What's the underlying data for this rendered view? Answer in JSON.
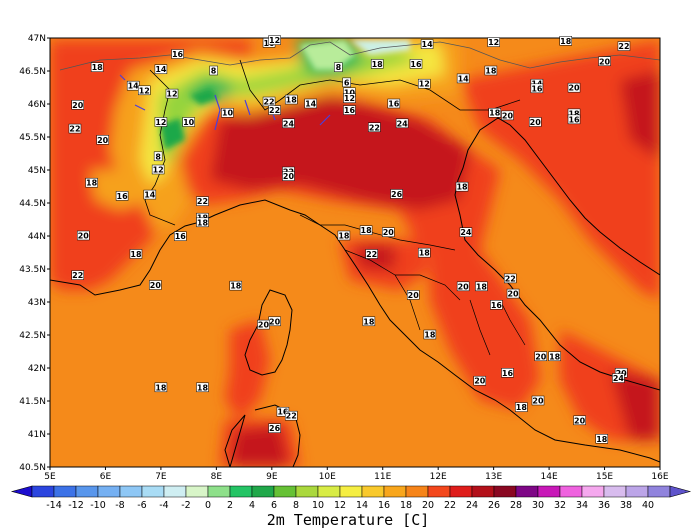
{
  "map": {
    "lat_ticks": [
      "47N",
      "46.5N",
      "46N",
      "45.5N",
      "45N",
      "44.5N",
      "44N",
      "43.5N",
      "43N",
      "42.5N",
      "42N",
      "41.5N",
      "41N",
      "40.5N"
    ],
    "lon_ticks": [
      "5E",
      "6E",
      "7E",
      "8E",
      "9E",
      "10E",
      "11E",
      "12E",
      "13E",
      "14E",
      "15E",
      "16E"
    ],
    "point_values": [
      {
        "t": "10",
        "lon": 8.95,
        "lat": 46.92
      },
      {
        "t": "12",
        "lon": 9.05,
        "lat": 46.96
      },
      {
        "t": "14",
        "lon": 11.8,
        "lat": 46.9
      },
      {
        "t": "12",
        "lon": 13.0,
        "lat": 46.93
      },
      {
        "t": "18",
        "lon": 14.3,
        "lat": 46.95
      },
      {
        "t": "22",
        "lon": 15.35,
        "lat": 46.87
      },
      {
        "t": "16",
        "lon": 7.3,
        "lat": 46.75
      },
      {
        "t": "20",
        "lon": 15.0,
        "lat": 46.64
      },
      {
        "t": "18",
        "lon": 5.85,
        "lat": 46.55
      },
      {
        "t": "8",
        "lon": 7.95,
        "lat": 46.5
      },
      {
        "t": "8",
        "lon": 10.2,
        "lat": 46.55
      },
      {
        "t": "18",
        "lon": 10.9,
        "lat": 46.6
      },
      {
        "t": "16",
        "lon": 11.6,
        "lat": 46.6
      },
      {
        "t": "18",
        "lon": 12.95,
        "lat": 46.5
      },
      {
        "t": "14",
        "lon": 7.0,
        "lat": 46.52
      },
      {
        "t": "6",
        "lon": 10.35,
        "lat": 46.32
      },
      {
        "t": "12",
        "lon": 11.75,
        "lat": 46.3
      },
      {
        "t": "14",
        "lon": 12.45,
        "lat": 46.38
      },
      {
        "t": "14",
        "lon": 13.78,
        "lat": 46.3
      },
      {
        "t": "16",
        "lon": 13.78,
        "lat": 46.23
      },
      {
        "t": "20",
        "lon": 14.45,
        "lat": 46.24
      },
      {
        "t": "14",
        "lon": 6.5,
        "lat": 46.27
      },
      {
        "t": "12",
        "lon": 6.7,
        "lat": 46.2
      },
      {
        "t": "12",
        "lon": 7.2,
        "lat": 46.15
      },
      {
        "t": "10",
        "lon": 10.4,
        "lat": 46.17
      },
      {
        "t": "12",
        "lon": 10.4,
        "lat": 46.08
      },
      {
        "t": "14",
        "lon": 9.7,
        "lat": 46.0
      },
      {
        "t": "16",
        "lon": 11.2,
        "lat": 46.0
      },
      {
        "t": "16",
        "lon": 10.4,
        "lat": 45.9
      },
      {
        "t": "22",
        "lon": 8.95,
        "lat": 46.03
      },
      {
        "t": "18",
        "lon": 9.35,
        "lat": 46.06
      },
      {
        "t": "20",
        "lon": 5.5,
        "lat": 45.98
      },
      {
        "t": "22",
        "lon": 9.05,
        "lat": 45.9
      },
      {
        "t": "18",
        "lon": 13.02,
        "lat": 45.86
      },
      {
        "t": "18",
        "lon": 14.45,
        "lat": 45.85
      },
      {
        "t": "16",
        "lon": 14.45,
        "lat": 45.76
      },
      {
        "t": "10",
        "lon": 8.2,
        "lat": 45.86
      },
      {
        "t": "12",
        "lon": 7.0,
        "lat": 45.72
      },
      {
        "t": "10",
        "lon": 7.5,
        "lat": 45.72
      },
      {
        "t": "24",
        "lon": 9.3,
        "lat": 45.7
      },
      {
        "t": "22",
        "lon": 10.85,
        "lat": 45.64
      },
      {
        "t": "24",
        "lon": 11.35,
        "lat": 45.7
      },
      {
        "t": "20",
        "lon": 13.25,
        "lat": 45.82
      },
      {
        "t": "20",
        "lon": 13.75,
        "lat": 45.72
      },
      {
        "t": "22",
        "lon": 5.45,
        "lat": 45.62
      },
      {
        "t": "20",
        "lon": 5.95,
        "lat": 45.45
      },
      {
        "t": "8",
        "lon": 6.95,
        "lat": 45.2
      },
      {
        "t": "12",
        "lon": 6.95,
        "lat": 45.0
      },
      {
        "t": "22",
        "lon": 9.3,
        "lat": 44.97
      },
      {
        "t": "20",
        "lon": 9.3,
        "lat": 44.9
      },
      {
        "t": "18",
        "lon": 5.75,
        "lat": 44.8
      },
      {
        "t": "18",
        "lon": 12.43,
        "lat": 44.74
      },
      {
        "t": "26",
        "lon": 11.25,
        "lat": 44.63
      },
      {
        "t": "16",
        "lon": 6.3,
        "lat": 44.6
      },
      {
        "t": "14",
        "lon": 6.8,
        "lat": 44.62
      },
      {
        "t": "22",
        "lon": 7.75,
        "lat": 44.52
      },
      {
        "t": "18",
        "lon": 7.75,
        "lat": 44.27
      },
      {
        "t": "18",
        "lon": 7.75,
        "lat": 44.2
      },
      {
        "t": "20",
        "lon": 5.6,
        "lat": 44.0
      },
      {
        "t": "16",
        "lon": 7.35,
        "lat": 43.99
      },
      {
        "t": "18",
        "lon": 10.3,
        "lat": 44.0
      },
      {
        "t": "18",
        "lon": 10.7,
        "lat": 44.08
      },
      {
        "t": "20",
        "lon": 11.1,
        "lat": 44.05
      },
      {
        "t": "24",
        "lon": 12.5,
        "lat": 44.05
      },
      {
        "t": "18",
        "lon": 6.55,
        "lat": 43.72
      },
      {
        "t": "22",
        "lon": 10.8,
        "lat": 43.72
      },
      {
        "t": "18",
        "lon": 11.75,
        "lat": 43.74
      },
      {
        "t": "22",
        "lon": 5.5,
        "lat": 43.4
      },
      {
        "t": "20",
        "lon": 6.9,
        "lat": 43.25
      },
      {
        "t": "20",
        "lon": 12.45,
        "lat": 43.23
      },
      {
        "t": "18",
        "lon": 12.78,
        "lat": 43.23
      },
      {
        "t": "22",
        "lon": 13.3,
        "lat": 43.35
      },
      {
        "t": "20",
        "lon": 13.35,
        "lat": 43.12
      },
      {
        "t": "18",
        "lon": 8.35,
        "lat": 43.24
      },
      {
        "t": "20",
        "lon": 11.55,
        "lat": 43.1
      },
      {
        "t": "16",
        "lon": 13.05,
        "lat": 42.95
      },
      {
        "t": "18",
        "lon": 10.75,
        "lat": 42.7
      },
      {
        "t": "20",
        "lon": 9.05,
        "lat": 42.7
      },
      {
        "t": "20",
        "lon": 8.85,
        "lat": 42.65
      },
      {
        "t": "18",
        "lon": 11.85,
        "lat": 42.5
      },
      {
        "t": "20",
        "lon": 13.85,
        "lat": 42.17
      },
      {
        "t": "18",
        "lon": 14.1,
        "lat": 42.17
      },
      {
        "t": "16",
        "lon": 13.25,
        "lat": 41.92
      },
      {
        "t": "20",
        "lon": 15.3,
        "lat": 41.92
      },
      {
        "t": "24",
        "lon": 15.25,
        "lat": 41.84
      },
      {
        "t": "20",
        "lon": 12.75,
        "lat": 41.8
      },
      {
        "t": "18",
        "lon": 7.0,
        "lat": 41.7
      },
      {
        "t": "18",
        "lon": 7.75,
        "lat": 41.7
      },
      {
        "t": "20",
        "lon": 13.8,
        "lat": 41.5
      },
      {
        "t": "18",
        "lon": 13.5,
        "lat": 41.4
      },
      {
        "t": "16",
        "lon": 9.2,
        "lat": 41.33
      },
      {
        "t": "22",
        "lon": 9.35,
        "lat": 41.27
      },
      {
        "t": "20",
        "lon": 14.55,
        "lat": 41.2
      },
      {
        "t": "26",
        "lon": 9.05,
        "lat": 41.08
      },
      {
        "t": "18",
        "lon": 14.95,
        "lat": 40.92
      }
    ]
  },
  "colorbar": {
    "title": "2m Temperature [C]",
    "tick_labels": [
      "-14",
      "-12",
      "-10",
      "-8",
      "-6",
      "-4",
      "-2",
      "0",
      "2",
      "4",
      "6",
      "8",
      "10",
      "12",
      "14",
      "16",
      "18",
      "20",
      "22",
      "24",
      "26",
      "28",
      "30",
      "32",
      "34",
      "36",
      "38",
      "40"
    ],
    "colors": [
      "#1c0dcf",
      "#2b45df",
      "#3c72e7",
      "#5896ec",
      "#75b0f2",
      "#8ec7f5",
      "#a9dcf5",
      "#cfeef2",
      "#d8f5c8",
      "#8ee08a",
      "#24c465",
      "#20a84a",
      "#66c135",
      "#aad83d",
      "#d8ec45",
      "#f5ee42",
      "#f9c92c",
      "#f8a61c",
      "#f68419",
      "#f3471c",
      "#df1d1b",
      "#b3101a",
      "#8a0822",
      "#7e0786",
      "#c818b8",
      "#ef62df",
      "#f5a8ee",
      "#d8bcee",
      "#bca5e8",
      "#9083dd",
      "#5e53cb"
    ]
  }
}
